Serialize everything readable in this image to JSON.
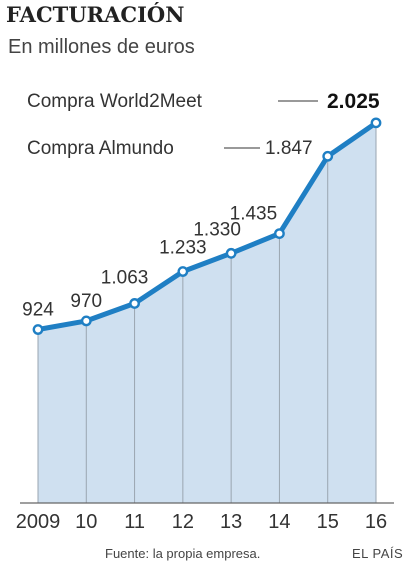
{
  "chart_data": {
    "type": "area",
    "title": "FACTURACIÓN",
    "subtitle": "En millones de euros",
    "categories": [
      "2009",
      "10",
      "11",
      "12",
      "13",
      "14",
      "15",
      "16"
    ],
    "values": [
      924,
      970,
      1063,
      1233,
      1330,
      1435,
      1847,
      2025
    ],
    "value_labels": [
      "924",
      "970",
      "1.063",
      "1.233",
      "1.330",
      "1.435",
      "1.847",
      "2.025"
    ],
    "ylim": [
      0,
      2200
    ],
    "grid": "vertical",
    "annotations": [
      {
        "text": "Compra World2Meet",
        "category": "16"
      },
      {
        "text": "Compra Almundo",
        "category": "15"
      }
    ],
    "source": "Fuente: la propia empresa.",
    "credit": "EL PAÍS",
    "colors": {
      "line": "#1f7fc4",
      "fill": "#cfe0f0",
      "grid": "#9aa5b0",
      "axis": "#666666"
    }
  }
}
